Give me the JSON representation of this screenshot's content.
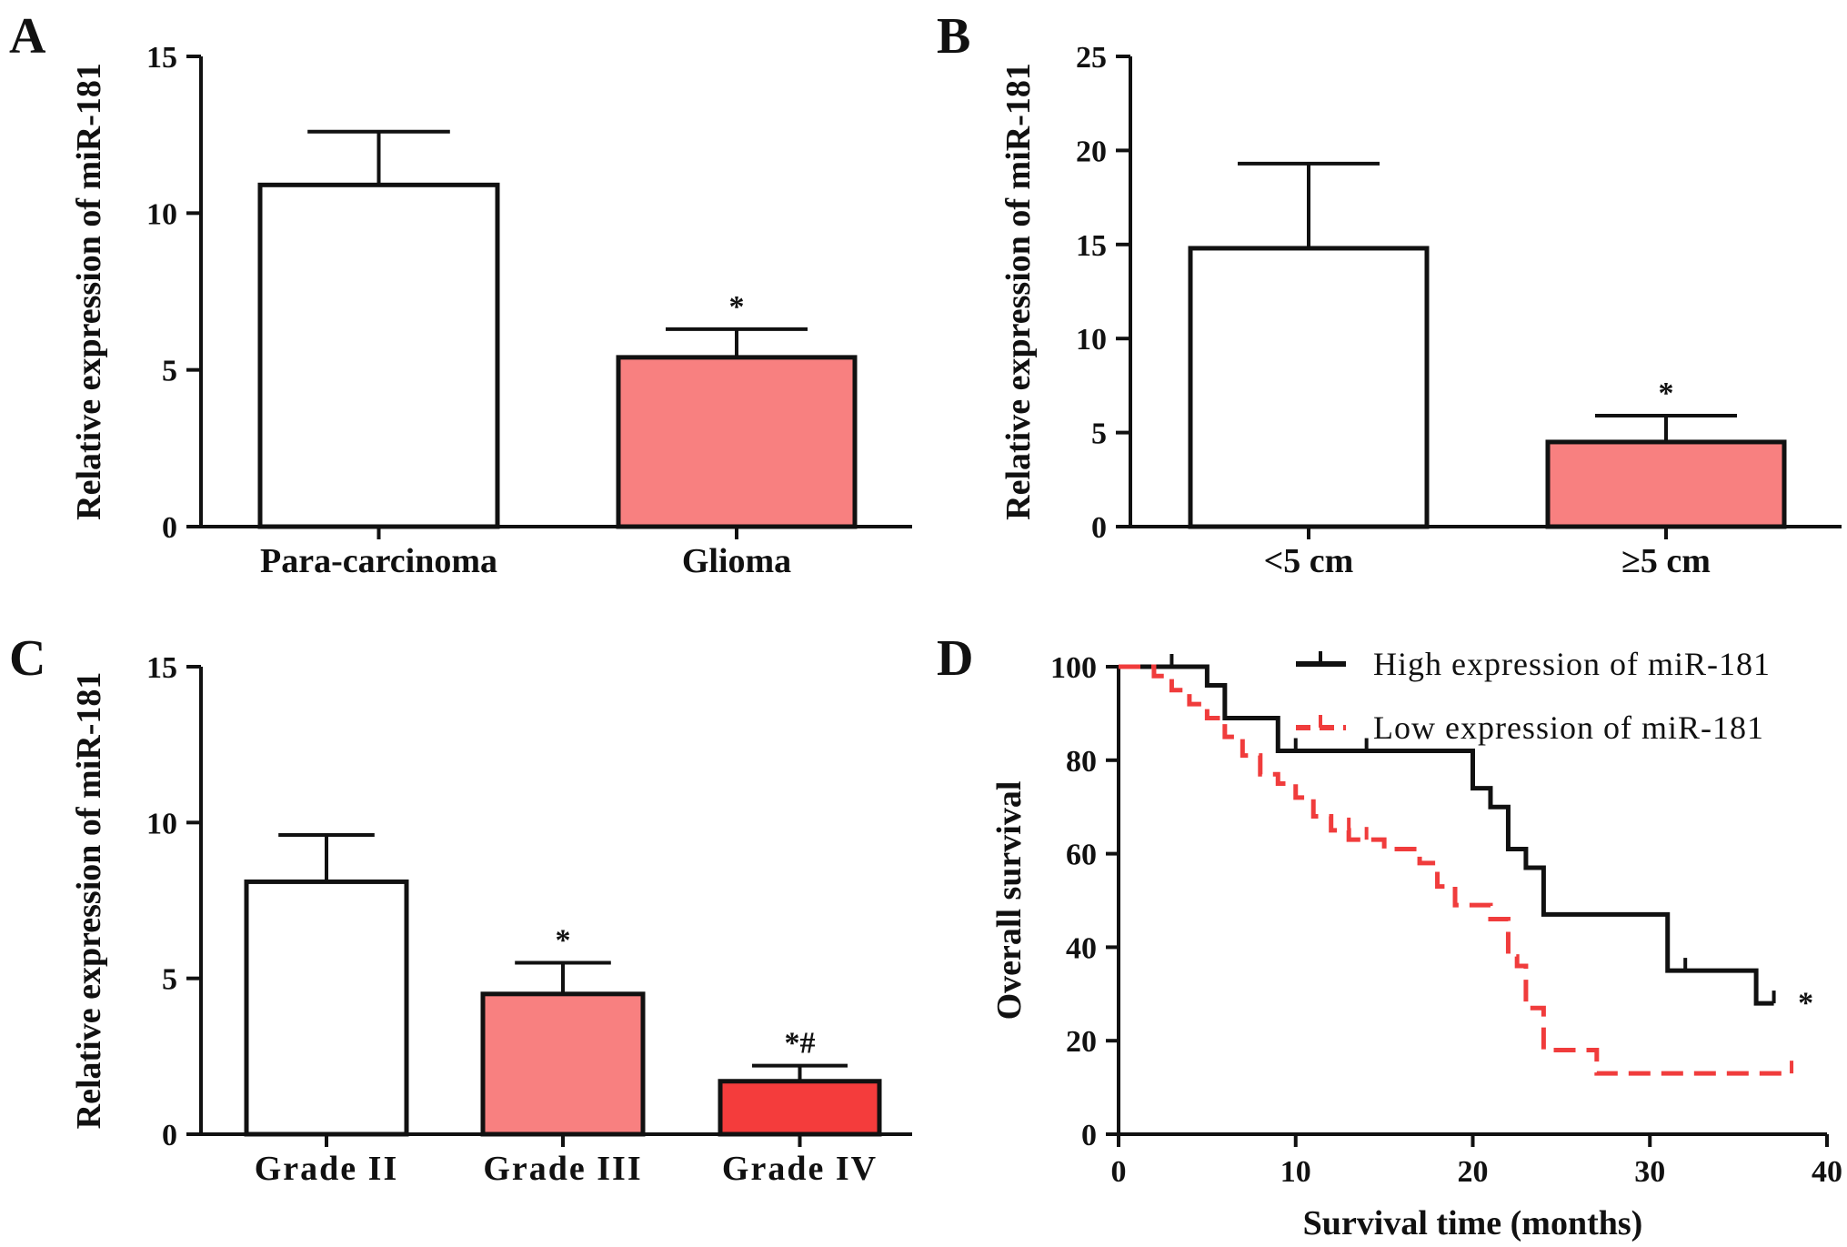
{
  "chart_data": [
    {
      "panel": "A",
      "type": "bar",
      "ylabel": "Relative expression of miR-181",
      "categories": [
        "Para-carcinoma",
        "Glioma"
      ],
      "values": [
        10.9,
        5.4
      ],
      "error_upper": [
        12.6,
        6.3
      ],
      "annotations": [
        "",
        "*"
      ],
      "colors": [
        "#ffffff",
        "#f88080"
      ],
      "ylim": [
        0,
        15
      ],
      "yticks": [
        0,
        5,
        10,
        15
      ]
    },
    {
      "panel": "B",
      "type": "bar",
      "ylabel": "Relative expression of miR-181",
      "categories": [
        "<5 cm",
        "≥5 cm"
      ],
      "values": [
        14.8,
        4.5
      ],
      "error_upper": [
        19.3,
        5.9
      ],
      "annotations": [
        "",
        "*"
      ],
      "colors": [
        "#ffffff",
        "#f88080"
      ],
      "ylim": [
        0,
        25
      ],
      "yticks": [
        0,
        5,
        10,
        15,
        20,
        25
      ]
    },
    {
      "panel": "C",
      "type": "bar",
      "ylabel": "Relative expression of miR-181",
      "categories": [
        "Grade II",
        "Grade III",
        "Grade IV"
      ],
      "values": [
        8.1,
        4.5,
        1.7
      ],
      "error_upper": [
        9.6,
        5.5,
        2.2
      ],
      "annotations": [
        "",
        "*",
        "*#"
      ],
      "colors": [
        "#ffffff",
        "#f88080",
        "#f43c3c"
      ],
      "ylim": [
        0,
        15
      ],
      "yticks": [
        0,
        5,
        10,
        15
      ]
    },
    {
      "panel": "D",
      "type": "line",
      "xlabel": "Survival time (months)",
      "ylabel": "Overall survival",
      "xlim": [
        0,
        40
      ],
      "ylim": [
        0,
        100
      ],
      "xticks": [
        0,
        10,
        20,
        30,
        40
      ],
      "yticks": [
        0,
        20,
        40,
        60,
        80,
        100
      ],
      "legend_position": "top-right",
      "annotation": "*",
      "series": [
        {
          "name": "High expression of miR-181",
          "color": "#111111",
          "style": "solid",
          "steps": [
            [
              0,
              100
            ],
            [
              5,
              96
            ],
            [
              6,
              89
            ],
            [
              9,
              82
            ],
            [
              20,
              74
            ],
            [
              21,
              70
            ],
            [
              22,
              61
            ],
            [
              23,
              57
            ],
            [
              24,
              47
            ],
            [
              31,
              35
            ],
            [
              36,
              28
            ],
            [
              37,
              28
            ]
          ],
          "censored": [
            [
              3,
              100
            ],
            [
              10,
              82
            ],
            [
              14,
              82
            ],
            [
              32,
              35
            ],
            [
              37,
              28
            ]
          ]
        },
        {
          "name": "Low  expression of miR-181",
          "color": "#f03c3c",
          "style": "dashed",
          "steps": [
            [
              0,
              100
            ],
            [
              2,
              98
            ],
            [
              3,
              95
            ],
            [
              4,
              92
            ],
            [
              5,
              89
            ],
            [
              6,
              85
            ],
            [
              7,
              81
            ],
            [
              8,
              77
            ],
            [
              9,
              75
            ],
            [
              10,
              72
            ],
            [
              11,
              68
            ],
            [
              12,
              65
            ],
            [
              13,
              63
            ],
            [
              15,
              61
            ],
            [
              17,
              58
            ],
            [
              18,
              53
            ],
            [
              19,
              49
            ],
            [
              21,
              46
            ],
            [
              22,
              38
            ],
            [
              22.5,
              36
            ],
            [
              23,
              27
            ],
            [
              24,
              18
            ],
            [
              27,
              13
            ],
            [
              38,
              13
            ]
          ],
          "censored": [
            [
              13,
              65
            ],
            [
              14,
              63
            ],
            [
              38,
              13
            ]
          ]
        }
      ]
    }
  ]
}
